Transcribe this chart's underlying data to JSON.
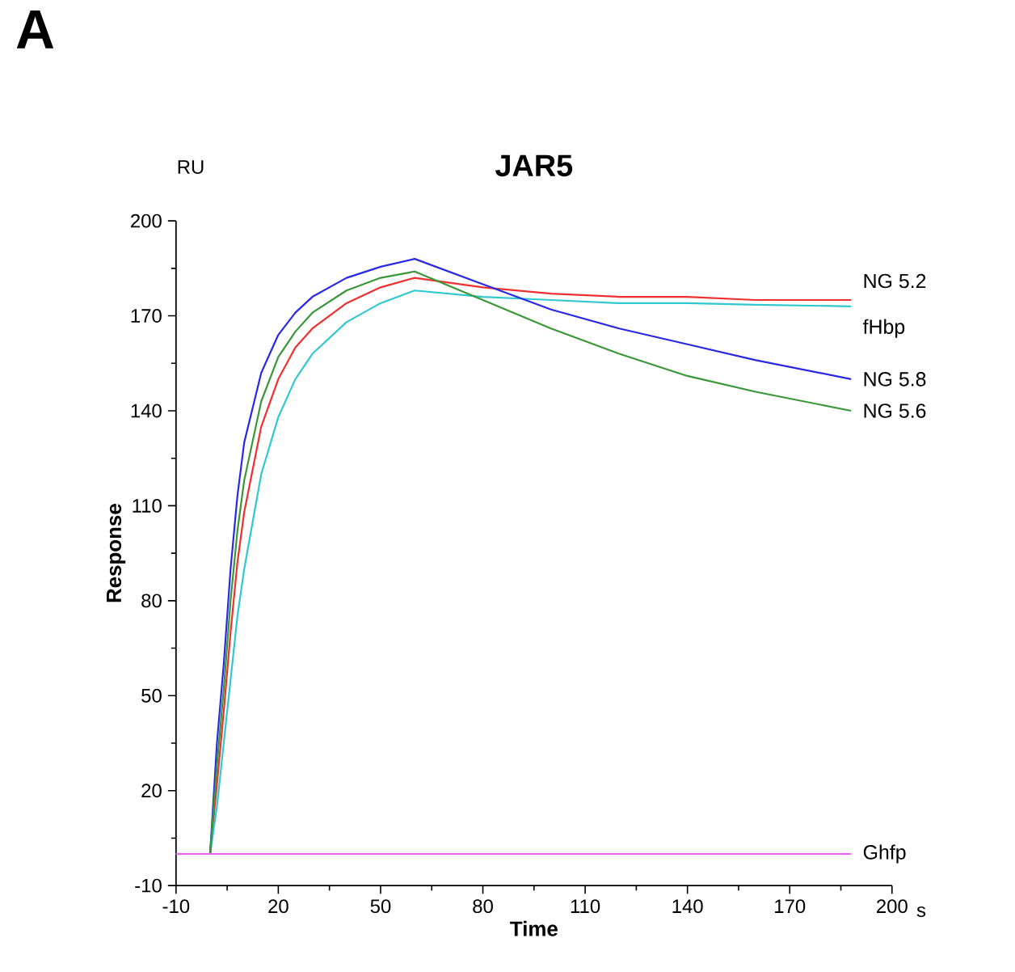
{
  "chart_data": {
    "type": "line",
    "title": "JAR5",
    "xlabel": "Time",
    "ylabel": "Response",
    "annotations": [
      "A",
      "RU",
      "s"
    ],
    "xlim": [
      -10,
      200
    ],
    "xticks": [
      -10,
      20,
      50,
      80,
      110,
      140,
      170,
      200
    ],
    "ylim": [
      -10,
      200
    ],
    "yticks": [
      -10,
      20,
      50,
      80,
      110,
      140,
      170,
      200
    ],
    "grid": false,
    "legend": false,
    "marker": "none",
    "line_style": "solid",
    "series": [
      {
        "name": "NG 5.2",
        "color": "#f03030",
        "x": [
          -10,
          0,
          2,
          4,
          6,
          8,
          10,
          15,
          20,
          25,
          30,
          40,
          50,
          60,
          80,
          100,
          120,
          140,
          160,
          188
        ],
        "values": [
          0,
          0,
          22,
          45,
          70,
          92,
          108,
          135,
          150,
          160,
          166,
          174,
          179,
          182,
          179,
          177,
          176,
          176,
          175,
          175
        ]
      },
      {
        "name": "fHbp",
        "color": "#30c8d0",
        "x": [
          -10,
          0,
          2,
          4,
          6,
          8,
          10,
          15,
          20,
          25,
          30,
          40,
          50,
          60,
          80,
          100,
          120,
          140,
          160,
          188
        ],
        "values": [
          0,
          0,
          15,
          35,
          55,
          75,
          90,
          120,
          138,
          150,
          158,
          168,
          174,
          178,
          176,
          175,
          174,
          174,
          173.5,
          173
        ]
      },
      {
        "name": "NG 5.8",
        "color": "#2828e8",
        "x": [
          -10,
          0,
          2,
          4,
          6,
          8,
          10,
          15,
          20,
          25,
          30,
          40,
          50,
          60,
          80,
          100,
          120,
          140,
          160,
          188
        ],
        "values": [
          0,
          0,
          35,
          60,
          90,
          113,
          130,
          152,
          164,
          171,
          176,
          182,
          185.5,
          188,
          180,
          172,
          166,
          161,
          156,
          150
        ]
      },
      {
        "name": "NG 5.6",
        "color": "#389838",
        "x": [
          -10,
          0,
          2,
          4,
          6,
          8,
          10,
          15,
          20,
          25,
          30,
          40,
          50,
          60,
          80,
          100,
          120,
          140,
          160,
          188
        ],
        "values": [
          0,
          0,
          28,
          52,
          80,
          102,
          118,
          143,
          157,
          165,
          171,
          178,
          182,
          184,
          175,
          166,
          158,
          151,
          146,
          140
        ]
      },
      {
        "name": "Ghfp",
        "color": "#f060f0",
        "x": [
          -10,
          0,
          20,
          50,
          80,
          110,
          140,
          170,
          188
        ],
        "values": [
          0,
          0,
          0,
          0,
          0,
          0,
          0,
          0,
          0
        ]
      }
    ]
  }
}
